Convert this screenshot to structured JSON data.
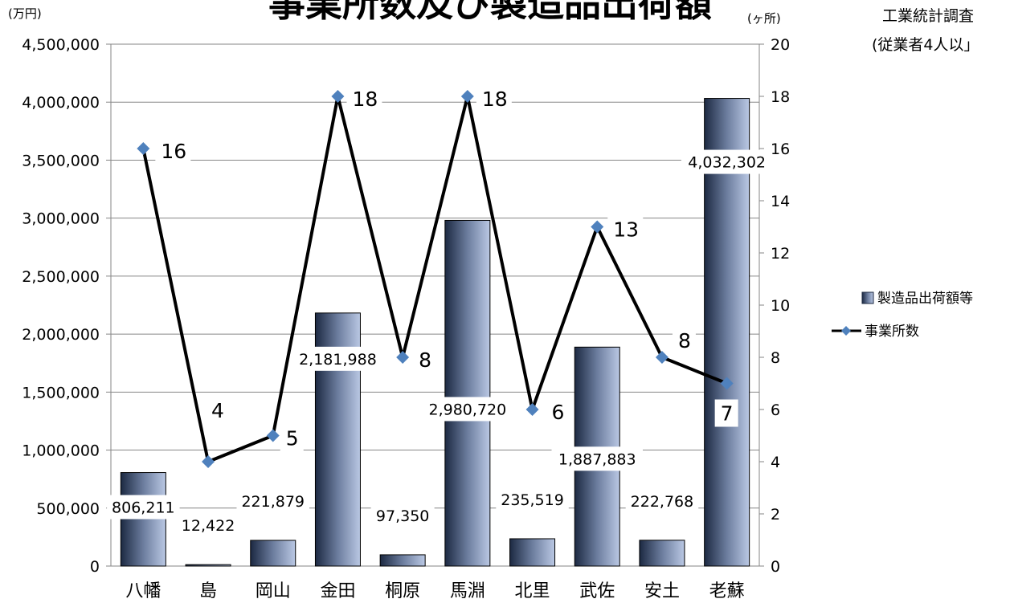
{
  "chart_data": {
    "type": "bar",
    "title": "事業所数及び製造品出荷額",
    "source_note": [
      "工業統計調査",
      "(従業者4人以」"
    ],
    "y_unit_left": "(万円)",
    "y_unit_right": "(ヶ所)",
    "categories": [
      "八幡",
      "島",
      "岡山",
      "金田",
      "桐原",
      "馬淵",
      "北里",
      "武佐",
      "安土",
      "老蘇"
    ],
    "series": [
      {
        "name": "製造品出荷額等",
        "type": "bar",
        "axis": "left",
        "values": [
          806211,
          12422,
          221879,
          2181988,
          97350,
          2980720,
          235519,
          1887883,
          222768,
          4032302
        ],
        "labels": [
          "806,211",
          "12,422",
          "221,879",
          "2,181,988",
          "97,350",
          "2,980,720",
          "235,519",
          "1,887,883",
          "222,768",
          "4,032,302"
        ]
      },
      {
        "name": "事業所数",
        "type": "line",
        "axis": "right",
        "values": [
          16,
          4,
          5,
          18,
          8,
          18,
          6,
          13,
          8,
          7
        ],
        "labels": [
          "16",
          "4",
          "5",
          "18",
          "8",
          "18",
          "6",
          "13",
          "8",
          "7"
        ]
      }
    ],
    "left_axis": {
      "ylim": [
        0,
        4500000
      ],
      "ticks": [
        "0",
        "500,000",
        "1,000,000",
        "1,500,000",
        "2,000,000",
        "2,500,000",
        "3,000,000",
        "3,500,000",
        "4,000,000",
        "4,500,000"
      ]
    },
    "right_axis": {
      "ylim": [
        0,
        20
      ],
      "ticks": [
        "0",
        "2",
        "4",
        "6",
        "8",
        "10",
        "12",
        "14",
        "16",
        "18",
        "20"
      ]
    },
    "grid": true,
    "legend_position": "right",
    "colors": {
      "bar_dark": "#1c2942",
      "bar_light": "#bac8e4",
      "line": "#000000",
      "marker": "#4f81bd",
      "grid": "#868686"
    }
  }
}
